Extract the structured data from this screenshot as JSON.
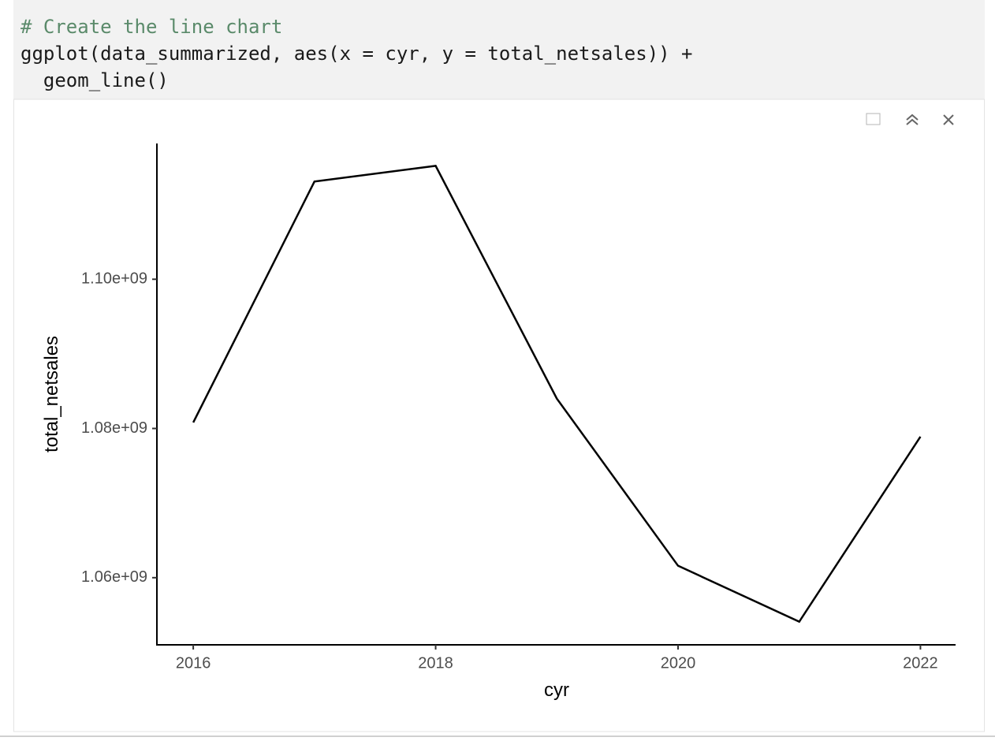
{
  "code": [
    "# Create the line chart",
    "ggplot(data_summarized, aes(x = cyr, y = total_netsales)) +",
    "  geom_line()"
  ],
  "chart_data": {
    "type": "line",
    "x_label": "cyr",
    "y_label": "total_netsales",
    "x": [
      2016,
      2017,
      2018,
      2019,
      2020,
      2021,
      2022
    ],
    "values": [
      1080800000,
      1113100000,
      1115200000,
      1084000000,
      1061600000,
      1054100000,
      1078900000
    ],
    "color": "#000000",
    "xlim": [
      2015.7,
      2022.29
    ],
    "xticks": [
      2016,
      2018,
      2020,
      2022
    ],
    "ylim": [
      1051000000,
      1118200000
    ],
    "yticks": [
      {
        "value": 1060000000,
        "label": "1.06e+09"
      },
      {
        "value": 1080000000,
        "label": "1.08e+09"
      },
      {
        "value": 1100000000,
        "label": "1.10e+09"
      }
    ],
    "grid": false
  }
}
